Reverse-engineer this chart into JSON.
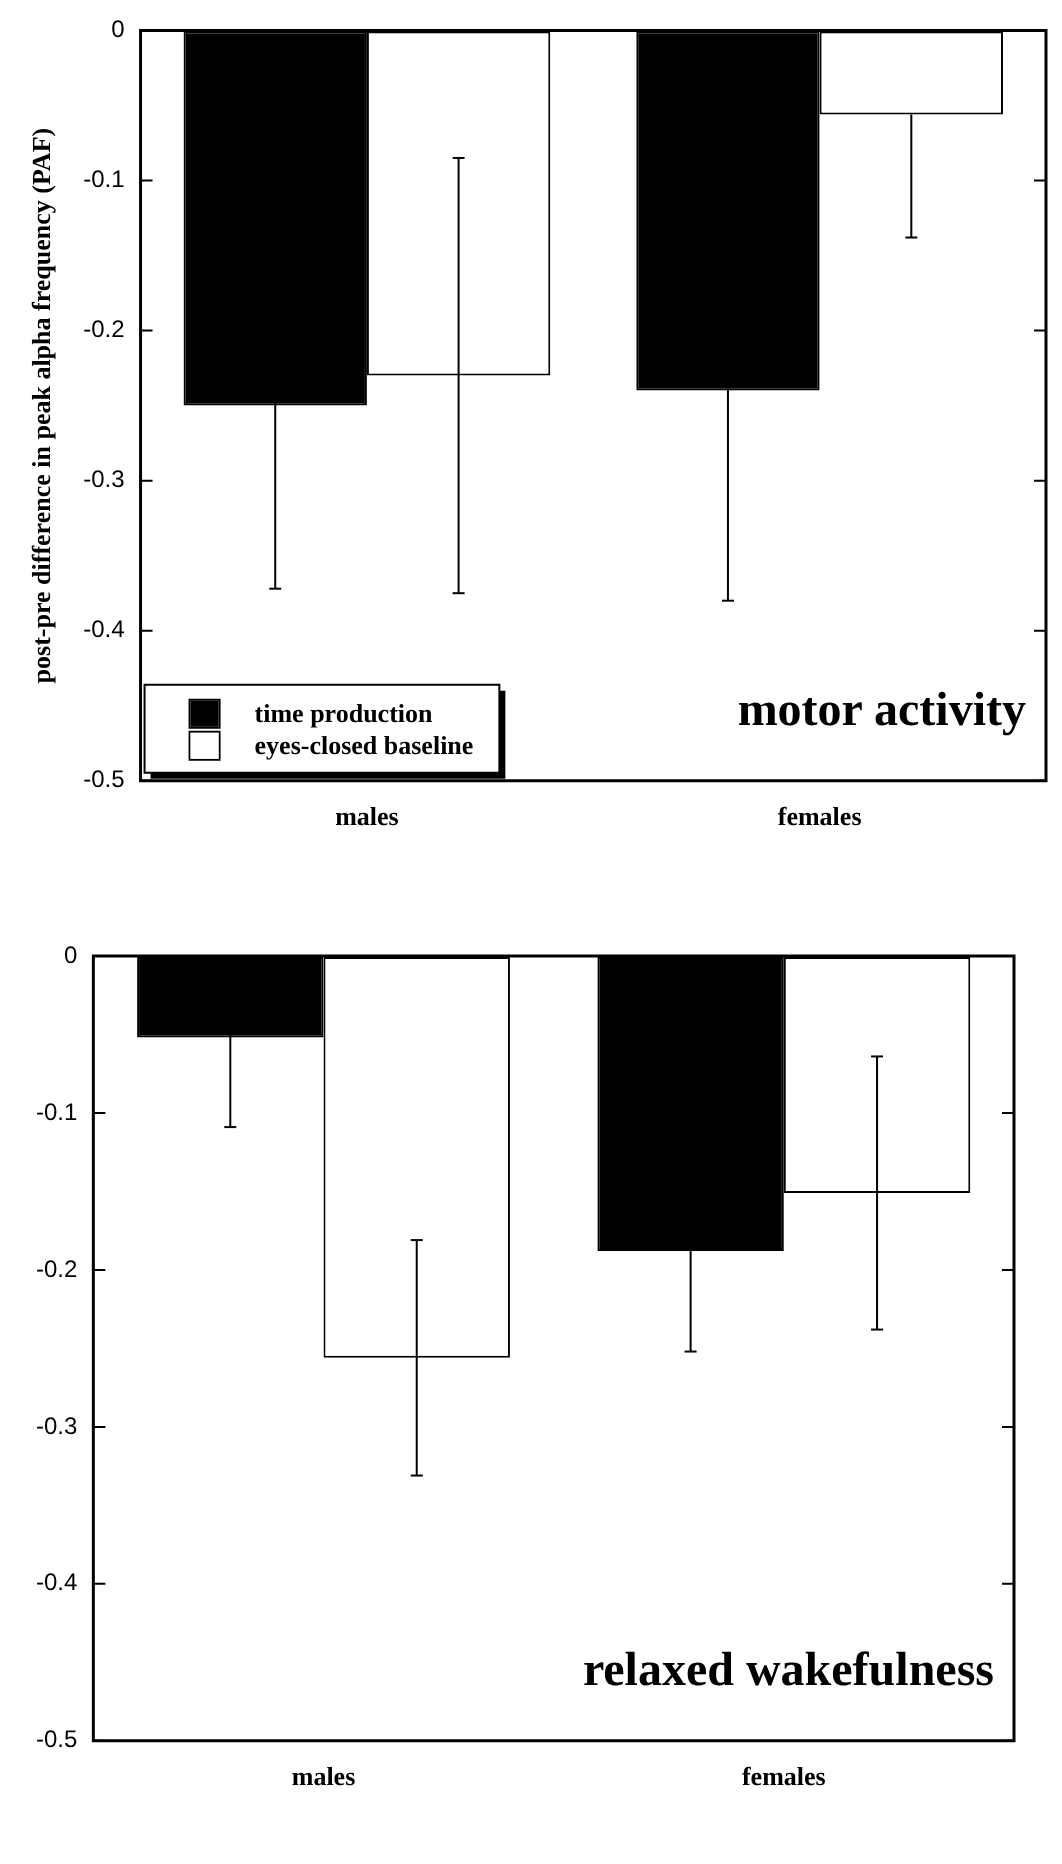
{
  "chart_data": [
    {
      "type": "bar",
      "ylabel": "post-pre difference in peak alpha frequency (PAF)",
      "categories": [
        "males",
        "females"
      ],
      "series": [
        {
          "name": "time production",
          "color": "#000000",
          "values": [
            -0.25,
            -0.24
          ],
          "errors": [
            0.122,
            0.14
          ]
        },
        {
          "name": "eyes-closed baseline",
          "color": "#ffffff",
          "values": [
            -0.23,
            -0.056
          ],
          "errors": [
            0.145,
            [
              -0.138,
              -0.056
            ]
          ]
        }
      ],
      "ylim": [
        -0.5,
        0
      ],
      "yticks": [
        0,
        -0.1,
        -0.2,
        -0.3,
        -0.4,
        -0.5
      ],
      "grid": false,
      "legend": "bottom left",
      "annotations": [
        "motor activity"
      ]
    },
    {
      "type": "bar",
      "categories": [
        "males",
        "females"
      ],
      "series": [
        {
          "color": "#000000",
          "values": [
            -0.052,
            -0.188
          ],
          "errors": [
            [
              -0.109,
              0
            ],
            0.064
          ]
        },
        {
          "color": "#ffffff",
          "values": [
            -0.256,
            -0.151
          ],
          "errors": [
            0.075,
            0.087
          ]
        }
      ],
      "ylim": [
        -0.5,
        0
      ],
      "yticks": [
        0,
        -0.1,
        -0.2,
        -0.3,
        -0.4,
        -0.5
      ],
      "grid": false,
      "annotations": [
        "relaxed wakefulness"
      ]
    }
  ]
}
